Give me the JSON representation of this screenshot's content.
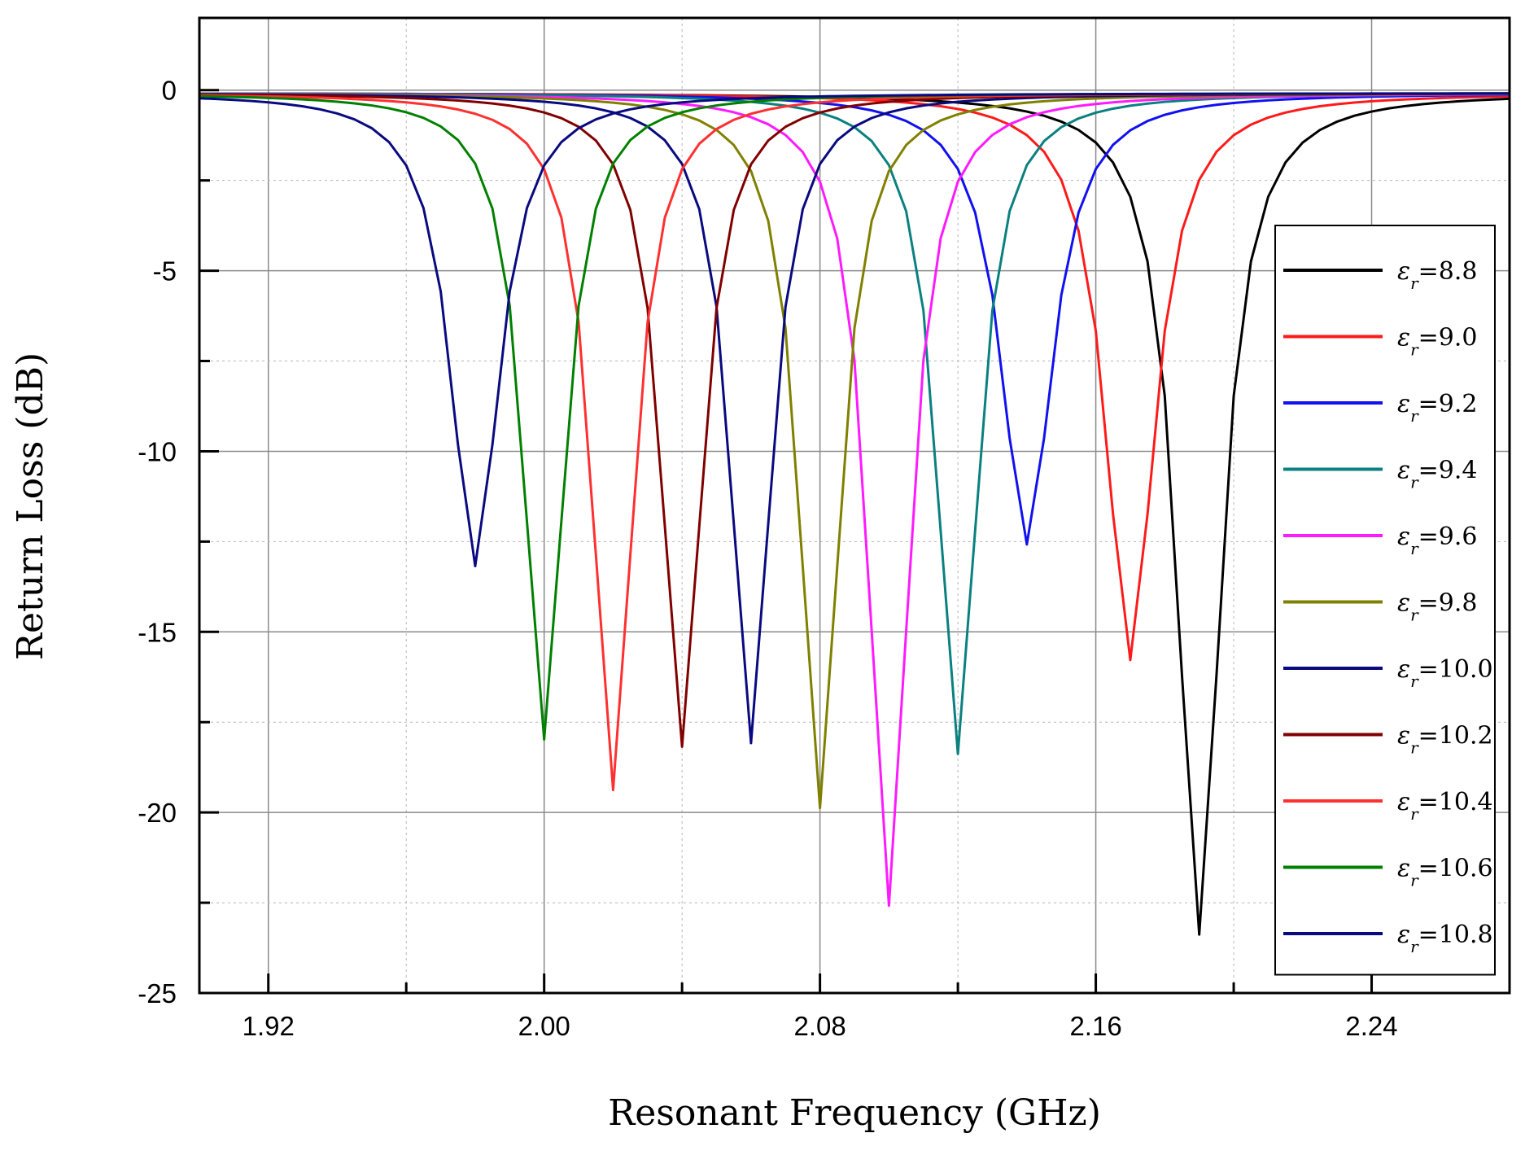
{
  "chart_data": {
    "type": "line",
    "title": "",
    "xlabel": "Resonant  Frequency (GHz)",
    "ylabel": "Return  Loss (dB)",
    "xlim": [
      1.9,
      2.28
    ],
    "ylim": [
      -25,
      2
    ],
    "xticks": [
      1.92,
      2.0,
      2.08,
      2.16,
      2.24
    ],
    "xtick_labels": [
      "1.92",
      "2.00",
      "2.08",
      "2.16",
      "2.24"
    ],
    "xminor": [
      1.96,
      2.04,
      2.12,
      2.2
    ],
    "yticks": [
      0,
      -5,
      -10,
      -15,
      -20,
      -25
    ],
    "ytick_labels": [
      "0",
      "-5",
      "-10",
      "-15",
      "-20",
      "-25"
    ],
    "yminor": [
      -2.5,
      -7.5,
      -12.5,
      -17.5,
      -22.5
    ],
    "grid": true,
    "legend_position": "right",
    "legend_symbol": "ε",
    "legend_subscript": "r",
    "series": [
      {
        "name": "=8.8",
        "color": "#000000",
        "f0": 2.19,
        "min": -23.3,
        "bw": 0.0075
      },
      {
        "name": "=9.0",
        "color": "#ff1a1a",
        "f0": 2.17,
        "min": -15.7,
        "bw": 0.0085
      },
      {
        "name": "=9.2",
        "color": "#1010f0",
        "f0": 2.14,
        "min": -12.5,
        "bw": 0.009
      },
      {
        "name": "=9.4",
        "color": "#0b8080",
        "f0": 2.12,
        "min": -18.3,
        "bw": 0.007
      },
      {
        "name": "=9.6",
        "color": "#ff1aff",
        "f0": 2.1,
        "min": -22.5,
        "bw": 0.007
      },
      {
        "name": "=9.8",
        "color": "#808000",
        "f0": 2.08,
        "min": -19.8,
        "bw": 0.007
      },
      {
        "name": "=10.0",
        "color": "#0a0a80",
        "f0": 2.06,
        "min": -18.0,
        "bw": 0.007
      },
      {
        "name": "=10.2",
        "color": "#800000",
        "f0": 2.04,
        "min": -18.1,
        "bw": 0.007
      },
      {
        "name": "=10.4",
        "color": "#ff3030",
        "f0": 2.02,
        "min": -19.3,
        "bw": 0.007
      },
      {
        "name": "=10.6",
        "color": "#008000",
        "f0": 2.0,
        "min": -17.9,
        "bw": 0.007
      },
      {
        "name": "=10.8",
        "color": "#0a0a80",
        "f0": 1.98,
        "min": -13.1,
        "bw": 0.0085
      }
    ]
  }
}
